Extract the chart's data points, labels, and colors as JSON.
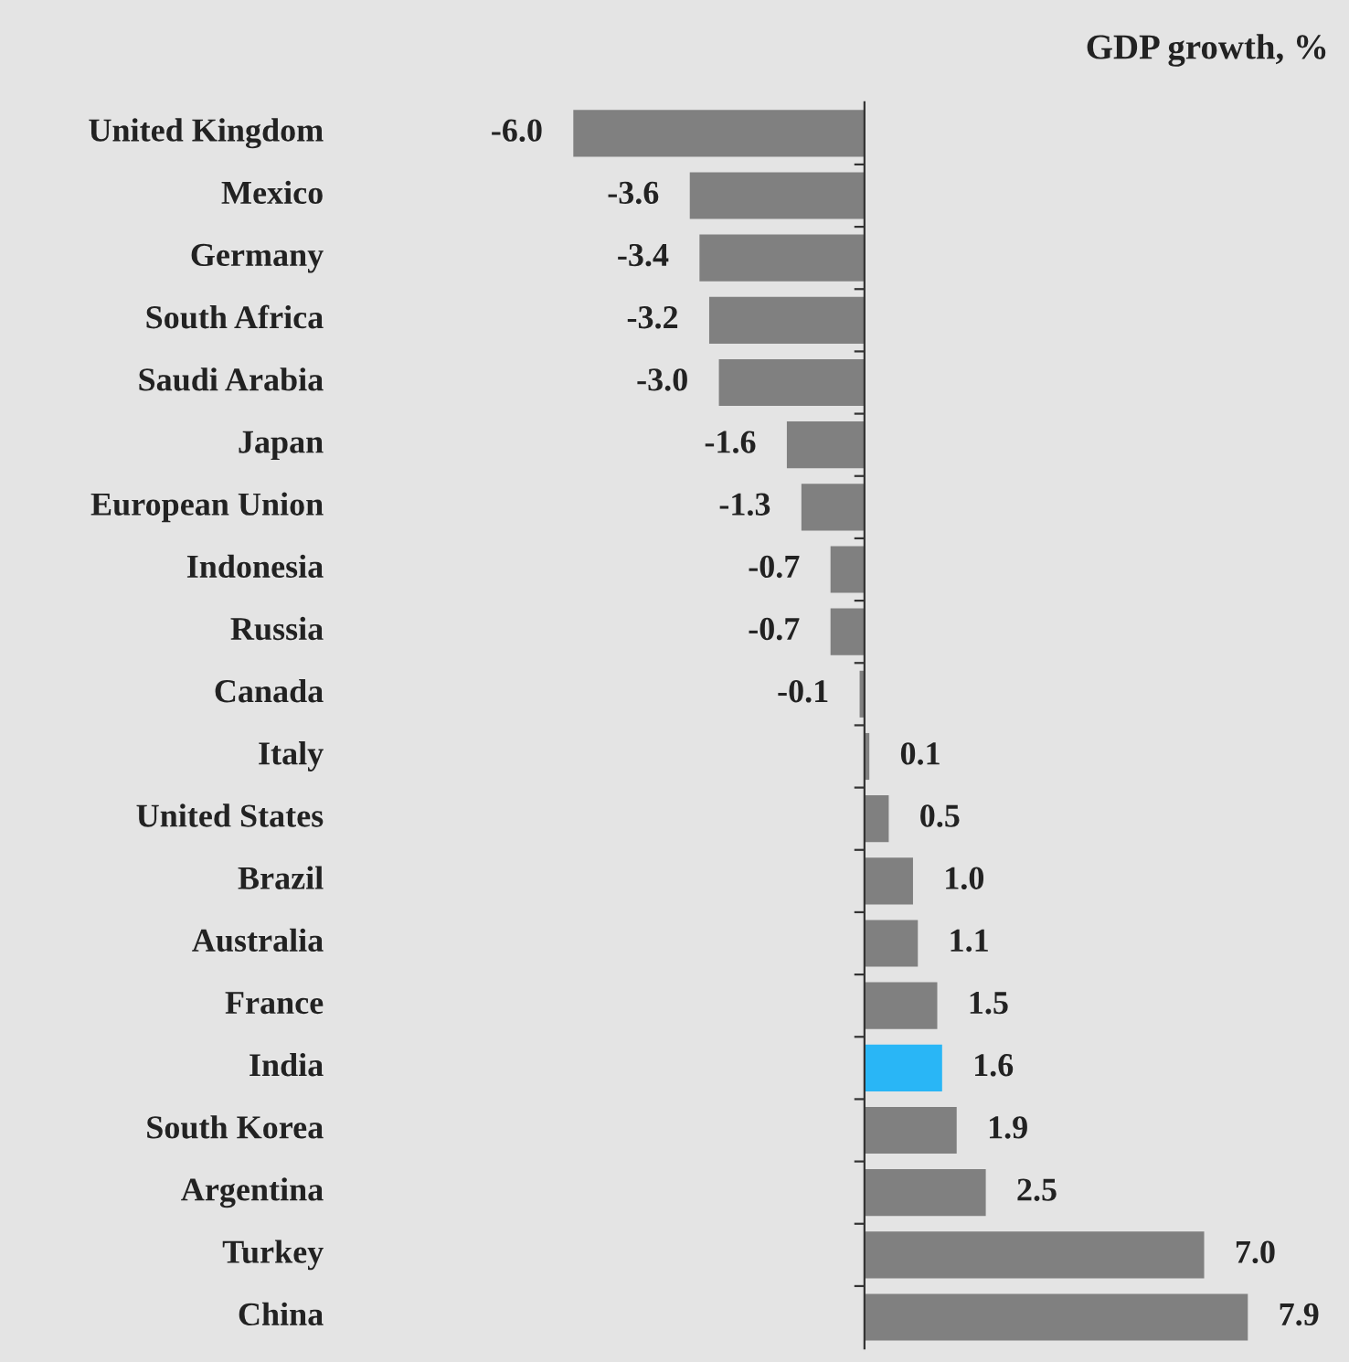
{
  "chart_data": {
    "type": "bar",
    "orientation": "horizontal",
    "title": "GDP growth, %",
    "categories": [
      "United Kingdom",
      "Mexico",
      "Germany",
      "South Africa",
      "Saudi Arabia",
      "Japan",
      "European Union",
      "Indonesia",
      "Russia",
      "Canada",
      "Italy",
      "United States",
      "Brazil",
      "Australia",
      "France",
      "India",
      "South Korea",
      "Argentina",
      "Turkey",
      "China"
    ],
    "values": [
      -6.0,
      -3.6,
      -3.4,
      -3.2,
      -3.0,
      -1.6,
      -1.3,
      -0.7,
      -0.7,
      -0.1,
      0.1,
      0.5,
      1.0,
      1.1,
      1.5,
      1.6,
      1.9,
      2.5,
      7.0,
      7.9
    ],
    "value_labels": [
      "-6.0",
      "-3.6",
      "-3.4",
      "-3.2",
      "-3.0",
      "-1.6",
      "-1.3",
      "-0.7",
      "-0.7",
      "-0.1",
      "0.1",
      "0.5",
      "1.0",
      "1.1",
      "1.5",
      "1.6",
      "1.9",
      "2.5",
      "7.0",
      "7.9"
    ],
    "colors": [
      "#808080",
      "#808080",
      "#808080",
      "#808080",
      "#808080",
      "#808080",
      "#808080",
      "#808080",
      "#808080",
      "#808080",
      "#808080",
      "#808080",
      "#808080",
      "#808080",
      "#808080",
      "#29b6f6",
      "#808080",
      "#808080",
      "#808080",
      "#808080"
    ],
    "grid": false,
    "legend": false
  }
}
